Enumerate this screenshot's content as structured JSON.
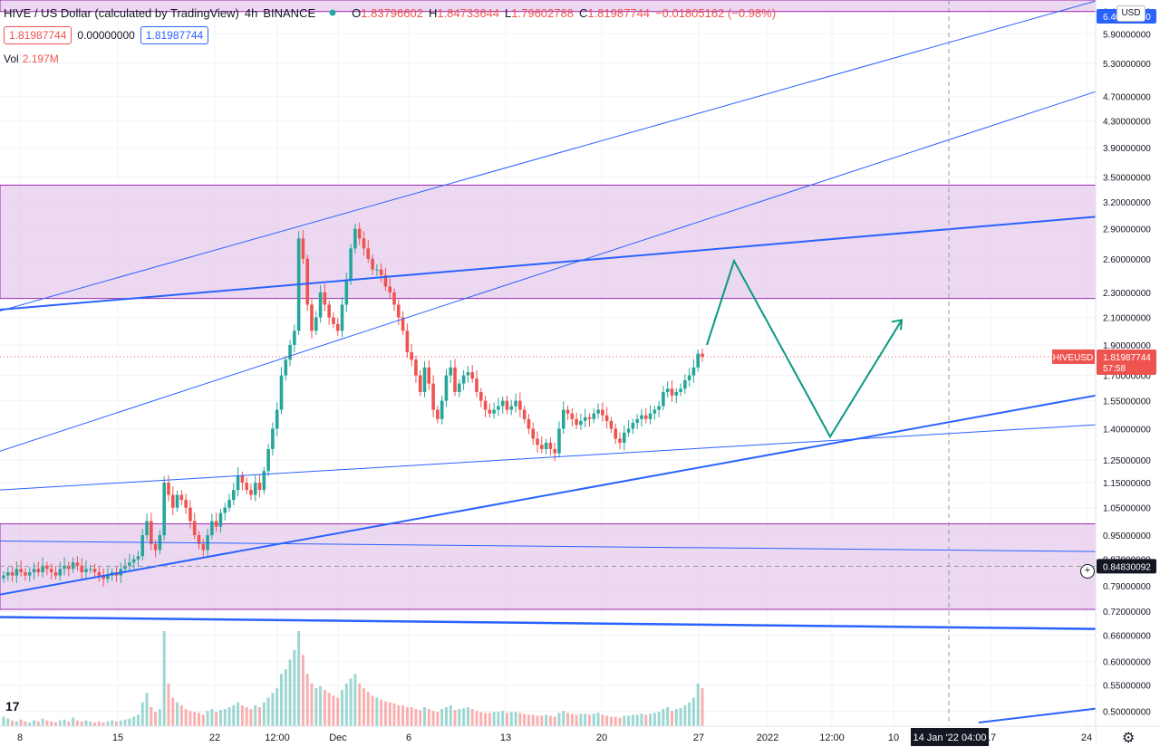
{
  "header": {
    "symbol": "HIVE / US Dollar (calculated by TradingView)",
    "interval": "4h",
    "exchange": "BINANCE",
    "o_label": "O",
    "o": "1.83796602",
    "h_label": "H",
    "h": "1.84733644",
    "l_label": "L",
    "l": "1.79602788",
    "c_label": "C",
    "c": "1.81987744",
    "change": "−0.01805162 (−0.98%)",
    "bid": "1.81987744",
    "spread": "0.00000000",
    "ask": "1.81987744",
    "vol_label": "Vol",
    "vol_value": "2.197M",
    "currency": "USD",
    "logo": "17"
  },
  "colors": {
    "up": "#26a69a",
    "down": "#ef5350",
    "trend": "#2962ff",
    "zone": "#e1bee7",
    "zone_border": "#9c27b0",
    "projection": "#089981"
  },
  "icons": [
    "eye-icon",
    "tradingview-logo",
    "crosshair-icon",
    "gear-icon"
  ],
  "chart_data": {
    "type": "candlestick",
    "title": "HIVE / US Dollar (calculated by TradingView) 4h BINANCE",
    "y_ticks": [
      "6.40000000",
      "5.90000000",
      "5.30000000",
      "4.70000000",
      "4.30000000",
      "3.90000000",
      "3.50000000",
      "3.20000000",
      "2.90000000",
      "2.60000000",
      "2.30000000",
      "2.10000000",
      "1.90000000",
      "1.70000000",
      "1.55000000",
      "1.40000000",
      "1.25000000",
      "1.15000000",
      "1.05000000",
      "0.95000000",
      "0.87000000",
      "0.79000000",
      "0.72000000",
      "0.66000000",
      "0.60000000",
      "0.55000000",
      "0.50000000"
    ],
    "x_ticks": [
      "8",
      "15",
      "22",
      "12:00",
      "Dec",
      "6",
      "13",
      "20",
      "27",
      "2022",
      "12:00",
      "10",
      "17",
      "24"
    ],
    "crosshair_x_label": "14 Jan '22  04:00",
    "price_label": "HIVEUSD",
    "price_value": "1.81987744",
    "price_countdown": "57:58",
    "crosshair_y_value": "0.84830092",
    "ylim": [
      0.48,
      6.5
    ],
    "scale": "log",
    "zones": [
      {
        "low": 2.25,
        "high": 3.4
      },
      {
        "low": 0.725,
        "high": 0.99
      },
      {
        "low": 6.4,
        "high": 6.9
      }
    ],
    "candle_path_close": [
      0.82,
      0.83,
      0.82,
      0.84,
      0.83,
      0.82,
      0.83,
      0.84,
      0.83,
      0.85,
      0.84,
      0.83,
      0.82,
      0.84,
      0.85,
      0.84,
      0.86,
      0.85,
      0.83,
      0.84,
      0.84,
      0.83,
      0.82,
      0.81,
      0.82,
      0.83,
      0.82,
      0.84,
      0.85,
      0.86,
      0.87,
      0.88,
      0.95,
      1.0,
      0.92,
      0.9,
      0.95,
      1.15,
      1.1,
      1.05,
      1.1,
      1.08,
      1.05,
      1.0,
      0.95,
      0.92,
      0.9,
      0.95,
      1.0,
      0.98,
      1.03,
      1.05,
      1.08,
      1.12,
      1.18,
      1.15,
      1.12,
      1.1,
      1.15,
      1.12,
      1.2,
      1.3,
      1.4,
      1.5,
      1.7,
      1.8,
      1.9,
      2.0,
      2.8,
      2.6,
      2.2,
      2.0,
      2.1,
      2.3,
      2.2,
      2.1,
      2.05,
      2.0,
      2.2,
      2.4,
      2.7,
      2.9,
      2.8,
      2.7,
      2.6,
      2.5,
      2.5,
      2.45,
      2.35,
      2.3,
      2.2,
      2.1,
      2.0,
      1.85,
      1.8,
      1.7,
      1.6,
      1.75,
      1.65,
      1.5,
      1.45,
      1.55,
      1.7,
      1.75,
      1.6,
      1.65,
      1.7,
      1.72,
      1.68,
      1.6,
      1.55,
      1.5,
      1.48,
      1.5,
      1.52,
      1.55,
      1.5,
      1.52,
      1.55,
      1.5,
      1.45,
      1.4,
      1.35,
      1.32,
      1.3,
      1.33,
      1.3,
      1.28,
      1.4,
      1.5,
      1.48,
      1.45,
      1.42,
      1.44,
      1.46,
      1.45,
      1.48,
      1.5,
      1.47,
      1.44,
      1.4,
      1.35,
      1.33,
      1.38,
      1.4,
      1.43,
      1.45,
      1.47,
      1.45,
      1.48,
      1.5,
      1.52,
      1.6,
      1.62,
      1.58,
      1.6,
      1.62,
      1.67,
      1.7,
      1.75,
      1.84,
      1.82
    ],
    "volume_relative": [
      0.1,
      0.08,
      0.06,
      0.05,
      0.07,
      0.05,
      0.04,
      0.06,
      0.05,
      0.08,
      0.06,
      0.05,
      0.04,
      0.06,
      0.07,
      0.05,
      0.09,
      0.06,
      0.05,
      0.06,
      0.05,
      0.04,
      0.05,
      0.04,
      0.05,
      0.06,
      0.05,
      0.06,
      0.07,
      0.08,
      0.1,
      0.12,
      0.25,
      0.35,
      0.2,
      0.15,
      0.18,
      1.0,
      0.45,
      0.3,
      0.25,
      0.22,
      0.18,
      0.16,
      0.15,
      0.14,
      0.12,
      0.16,
      0.18,
      0.15,
      0.17,
      0.18,
      0.2,
      0.22,
      0.25,
      0.22,
      0.2,
      0.18,
      0.22,
      0.2,
      0.25,
      0.3,
      0.35,
      0.4,
      0.55,
      0.6,
      0.7,
      0.8,
      1.0,
      0.75,
      0.55,
      0.45,
      0.4,
      0.42,
      0.38,
      0.35,
      0.32,
      0.3,
      0.38,
      0.45,
      0.5,
      0.55,
      0.45,
      0.4,
      0.36,
      0.32,
      0.3,
      0.28,
      0.26,
      0.25,
      0.24,
      0.22,
      0.22,
      0.2,
      0.2,
      0.18,
      0.17,
      0.2,
      0.18,
      0.16,
      0.15,
      0.18,
      0.2,
      0.22,
      0.17,
      0.18,
      0.19,
      0.2,
      0.18,
      0.16,
      0.15,
      0.14,
      0.14,
      0.15,
      0.15,
      0.16,
      0.14,
      0.15,
      0.15,
      0.14,
      0.13,
      0.12,
      0.12,
      0.11,
      0.11,
      0.12,
      0.11,
      0.1,
      0.14,
      0.16,
      0.14,
      0.13,
      0.12,
      0.13,
      0.13,
      0.12,
      0.13,
      0.14,
      0.12,
      0.11,
      0.1,
      0.1,
      0.09,
      0.11,
      0.11,
      0.12,
      0.12,
      0.13,
      0.12,
      0.13,
      0.14,
      0.15,
      0.18,
      0.2,
      0.16,
      0.18,
      0.19,
      0.22,
      0.25,
      0.3,
      0.45,
      0.4
    ],
    "projection_price_path": [
      1.9,
      2.58,
      1.36,
      2.08
    ]
  }
}
